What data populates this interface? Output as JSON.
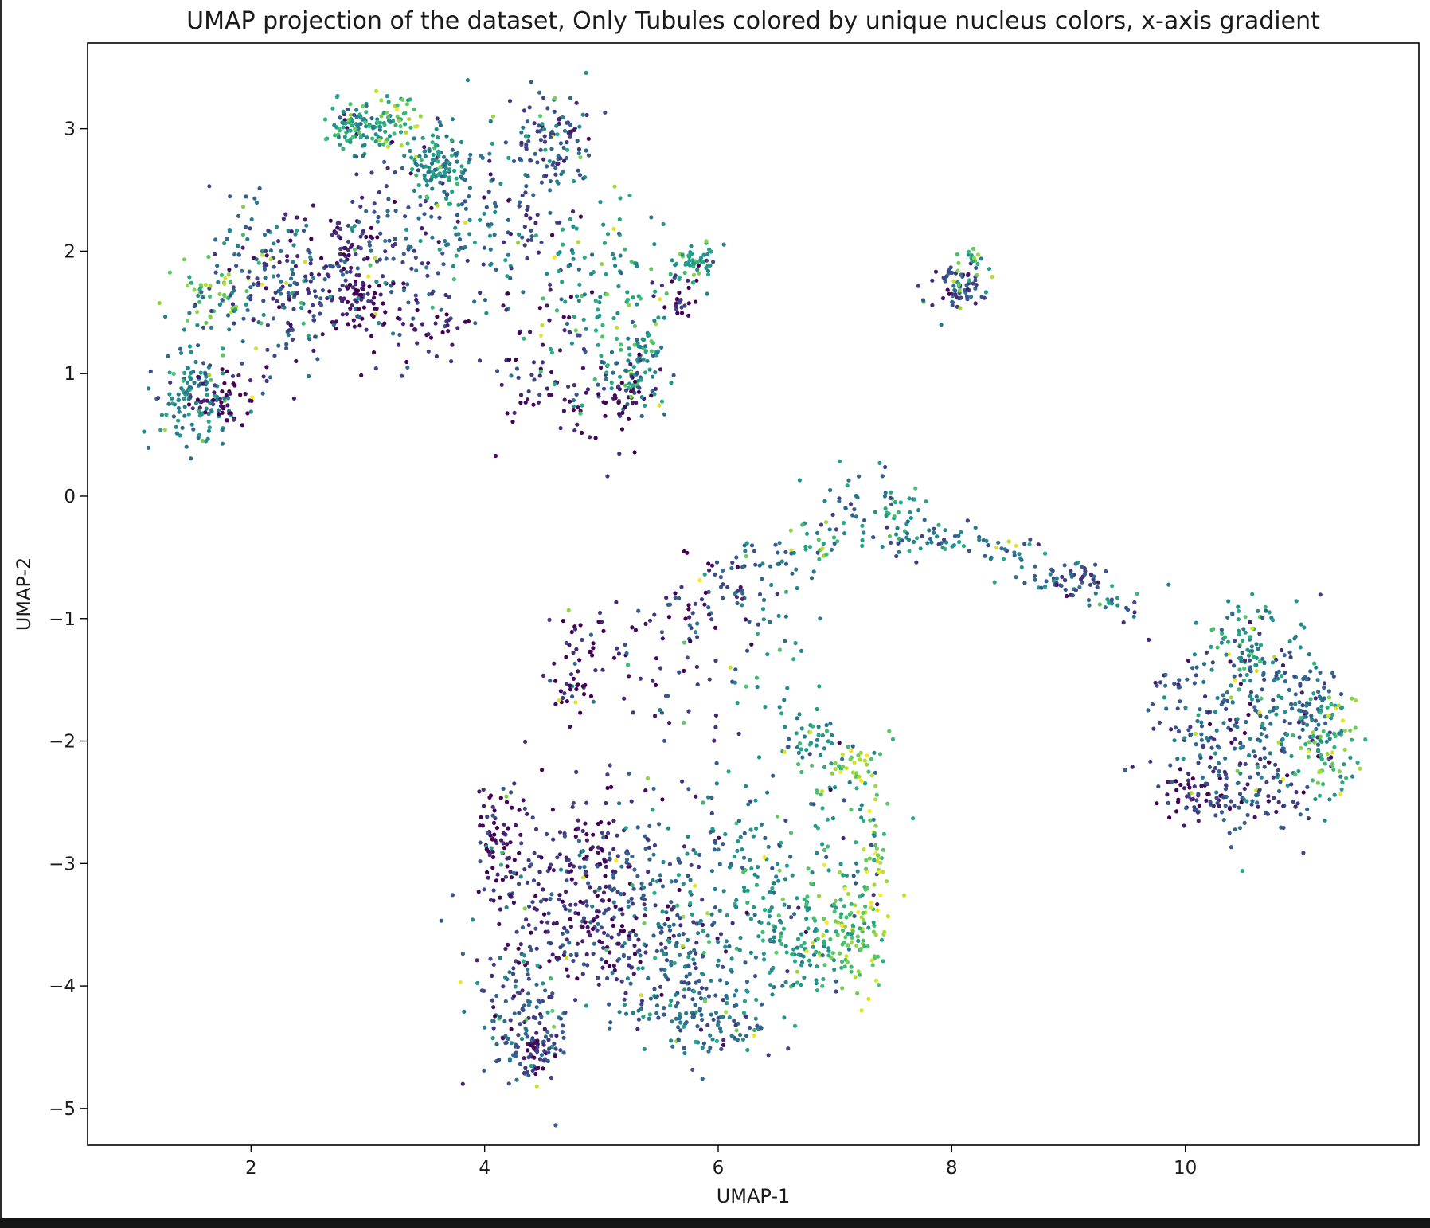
{
  "chart_data": {
    "type": "scatter",
    "title": "UMAP projection of the dataset, Only Tubules colored by unique nucleus colors, x-axis gradient",
    "xlabel": "UMAP-1",
    "ylabel": "UMAP-2",
    "xlim": [
      0.6,
      12.0
    ],
    "ylim": [
      -5.3,
      3.7
    ],
    "xticks": [
      2,
      4,
      6,
      8,
      10
    ],
    "yticks": [
      -5,
      -4,
      -3,
      -2,
      -1,
      0,
      1,
      2,
      3
    ],
    "xtick_labels": [
      "2",
      "4",
      "6",
      "8",
      "10"
    ],
    "ytick_labels": [
      "−5",
      "−4",
      "−3",
      "−2",
      "−1",
      "0",
      "1",
      "2",
      "3"
    ],
    "grid": false,
    "legend": "none",
    "colormap": "viridis",
    "marker_color_range": [
      "#440154",
      "#fde725"
    ],
    "clusters": [
      {
        "cx": 1.5,
        "cy": 0.85,
        "sx": 0.18,
        "sy": 0.22,
        "n": 130,
        "c": 0.45
      },
      {
        "cx": 1.75,
        "cy": 0.8,
        "sx": 0.1,
        "sy": 0.1,
        "n": 50,
        "c": 0.05
      },
      {
        "cx": 1.65,
        "cy": 1.65,
        "sx": 0.12,
        "sy": 0.12,
        "n": 40,
        "c": 0.7
      },
      {
        "cx": 2.1,
        "cy": 1.8,
        "sx": 0.25,
        "sy": 0.35,
        "n": 140,
        "c": 0.35
      },
      {
        "cx": 2.45,
        "cy": 1.6,
        "sx": 0.2,
        "sy": 0.3,
        "n": 80,
        "c": 0.15
      },
      {
        "cx": 2.95,
        "cy": 3.0,
        "sx": 0.15,
        "sy": 0.12,
        "n": 100,
        "c": 0.55
      },
      {
        "cx": 3.25,
        "cy": 3.1,
        "sx": 0.15,
        "sy": 0.1,
        "n": 40,
        "c": 0.75
      },
      {
        "cx": 2.9,
        "cy": 1.6,
        "sx": 0.12,
        "sy": 0.12,
        "n": 60,
        "c": 0.05
      },
      {
        "cx": 2.8,
        "cy": 2.0,
        "sx": 0.12,
        "sy": 0.2,
        "n": 60,
        "c": 0.1
      },
      {
        "cx": 3.2,
        "cy": 2.1,
        "sx": 0.3,
        "sy": 0.45,
        "n": 110,
        "c": 0.25
      },
      {
        "cx": 3.6,
        "cy": 2.7,
        "sx": 0.15,
        "sy": 0.15,
        "n": 110,
        "c": 0.5
      },
      {
        "cx": 3.85,
        "cy": 2.3,
        "sx": 0.3,
        "sy": 0.4,
        "n": 90,
        "c": 0.4
      },
      {
        "cx": 3.5,
        "cy": 1.4,
        "sx": 0.2,
        "sy": 0.15,
        "n": 40,
        "c": 0.1
      },
      {
        "cx": 4.6,
        "cy": 2.9,
        "sx": 0.15,
        "sy": 0.2,
        "n": 90,
        "c": 0.3
      },
      {
        "cx": 4.4,
        "cy": 2.4,
        "sx": 0.2,
        "sy": 0.5,
        "n": 70,
        "c": 0.2
      },
      {
        "cx": 4.95,
        "cy": 1.8,
        "sx": 0.3,
        "sy": 0.4,
        "n": 110,
        "c": 0.55
      },
      {
        "cx": 4.5,
        "cy": 1.0,
        "sx": 0.25,
        "sy": 0.3,
        "n": 60,
        "c": 0.1
      },
      {
        "cx": 4.95,
        "cy": 0.7,
        "sx": 0.25,
        "sy": 0.2,
        "n": 40,
        "c": 0.05
      },
      {
        "cx": 5.35,
        "cy": 1.1,
        "sx": 0.12,
        "sy": 0.2,
        "n": 80,
        "c": 0.5
      },
      {
        "cx": 5.25,
        "cy": 0.85,
        "sx": 0.1,
        "sy": 0.15,
        "n": 30,
        "c": 0.1
      },
      {
        "cx": 5.8,
        "cy": 1.9,
        "sx": 0.12,
        "sy": 0.08,
        "n": 50,
        "c": 0.55
      },
      {
        "cx": 5.65,
        "cy": 1.6,
        "sx": 0.1,
        "sy": 0.1,
        "n": 30,
        "c": 0.05
      },
      {
        "cx": 8.05,
        "cy": 1.7,
        "sx": 0.12,
        "sy": 0.1,
        "n": 70,
        "c": 0.2
      },
      {
        "cx": 8.15,
        "cy": 1.85,
        "sx": 0.08,
        "sy": 0.08,
        "n": 20,
        "c": 0.65
      },
      {
        "cx": 7.2,
        "cy": -0.1,
        "sx": 0.2,
        "sy": 0.2,
        "n": 40,
        "c": 0.4
      },
      {
        "cx": 7.55,
        "cy": -0.2,
        "sx": 0.15,
        "sy": 0.15,
        "n": 40,
        "c": 0.5
      },
      {
        "cx": 7.9,
        "cy": -0.35,
        "sx": 0.2,
        "sy": 0.06,
        "n": 30,
        "c": 0.4
      },
      {
        "cx": 8.5,
        "cy": -0.45,
        "sx": 0.2,
        "sy": 0.05,
        "n": 25,
        "c": 0.4
      },
      {
        "cx": 9.0,
        "cy": -0.68,
        "sx": 0.18,
        "sy": 0.08,
        "n": 60,
        "c": 0.3
      },
      {
        "cx": 9.4,
        "cy": -0.88,
        "sx": 0.12,
        "sy": 0.06,
        "n": 20,
        "c": 0.45
      },
      {
        "cx": 6.6,
        "cy": -0.5,
        "sx": 0.15,
        "sy": 0.1,
        "n": 25,
        "c": 0.35
      },
      {
        "cx": 6.9,
        "cy": -0.4,
        "sx": 0.1,
        "sy": 0.1,
        "n": 12,
        "c": 0.7
      },
      {
        "cx": 6.2,
        "cy": -0.75,
        "sx": 0.2,
        "sy": 0.25,
        "n": 40,
        "c": 0.3
      },
      {
        "cx": 5.8,
        "cy": -0.9,
        "sx": 0.2,
        "sy": 0.25,
        "n": 40,
        "c": 0.1
      },
      {
        "cx": 5.25,
        "cy": -1.25,
        "sx": 0.25,
        "sy": 0.2,
        "n": 40,
        "c": 0.08
      },
      {
        "cx": 4.75,
        "cy": -1.45,
        "sx": 0.1,
        "sy": 0.25,
        "n": 45,
        "c": 0.03
      },
      {
        "cx": 6.5,
        "cy": -1.5,
        "sx": 0.15,
        "sy": 0.4,
        "n": 30,
        "c": 0.5
      },
      {
        "cx": 5.75,
        "cy": -1.75,
        "sx": 0.3,
        "sy": 0.25,
        "n": 20,
        "c": 0.2
      },
      {
        "cx": 4.1,
        "cy": -2.8,
        "sx": 0.08,
        "sy": 0.2,
        "n": 60,
        "c": 0.02
      },
      {
        "cx": 4.35,
        "cy": -3.2,
        "sx": 0.25,
        "sy": 0.45,
        "n": 100,
        "c": 0.15
      },
      {
        "cx": 4.9,
        "cy": -2.95,
        "sx": 0.25,
        "sy": 0.3,
        "n": 110,
        "c": 0.1
      },
      {
        "cx": 5.5,
        "cy": -3.05,
        "sx": 0.3,
        "sy": 0.3,
        "n": 110,
        "c": 0.3
      },
      {
        "cx": 6.2,
        "cy": -2.85,
        "sx": 0.35,
        "sy": 0.35,
        "n": 80,
        "c": 0.4
      },
      {
        "cx": 4.3,
        "cy": -4.2,
        "sx": 0.2,
        "sy": 0.3,
        "n": 120,
        "c": 0.3
      },
      {
        "cx": 4.45,
        "cy": -4.55,
        "sx": 0.12,
        "sy": 0.1,
        "n": 60,
        "c": 0.15
      },
      {
        "cx": 5.0,
        "cy": -3.65,
        "sx": 0.25,
        "sy": 0.2,
        "n": 110,
        "c": 0.1
      },
      {
        "cx": 5.6,
        "cy": -3.85,
        "sx": 0.3,
        "sy": 0.3,
        "n": 140,
        "c": 0.3
      },
      {
        "cx": 5.9,
        "cy": -4.3,
        "sx": 0.3,
        "sy": 0.15,
        "n": 100,
        "c": 0.35
      },
      {
        "cx": 6.3,
        "cy": -3.55,
        "sx": 0.3,
        "sy": 0.35,
        "n": 100,
        "c": 0.5
      },
      {
        "cx": 6.85,
        "cy": -3.6,
        "sx": 0.2,
        "sy": 0.25,
        "n": 90,
        "c": 0.62
      },
      {
        "cx": 7.2,
        "cy": -3.55,
        "sx": 0.14,
        "sy": 0.25,
        "n": 90,
        "c": 0.78
      },
      {
        "cx": 7.1,
        "cy": -2.7,
        "sx": 0.22,
        "sy": 0.45,
        "n": 70,
        "c": 0.6
      },
      {
        "cx": 7.15,
        "cy": -2.2,
        "sx": 0.12,
        "sy": 0.1,
        "n": 30,
        "c": 0.85
      },
      {
        "cx": 6.8,
        "cy": -1.95,
        "sx": 0.12,
        "sy": 0.12,
        "n": 30,
        "c": 0.55
      },
      {
        "cx": 7.35,
        "cy": -2.9,
        "sx": 0.06,
        "sy": 0.2,
        "n": 25,
        "c": 0.9
      },
      {
        "cx": 10.1,
        "cy": -2.45,
        "sx": 0.18,
        "sy": 0.08,
        "n": 50,
        "c": 0.08
      },
      {
        "cx": 10.2,
        "cy": -1.95,
        "sx": 0.25,
        "sy": 0.35,
        "n": 110,
        "c": 0.25
      },
      {
        "cx": 10.5,
        "cy": -1.2,
        "sx": 0.15,
        "sy": 0.18,
        "n": 70,
        "c": 0.55
      },
      {
        "cx": 10.75,
        "cy": -1.75,
        "sx": 0.28,
        "sy": 0.4,
        "n": 150,
        "c": 0.4
      },
      {
        "cx": 11.1,
        "cy": -1.65,
        "sx": 0.14,
        "sy": 0.2,
        "n": 60,
        "c": 0.3
      },
      {
        "cx": 11.25,
        "cy": -2.05,
        "sx": 0.12,
        "sy": 0.2,
        "n": 70,
        "c": 0.7
      },
      {
        "cx": 10.7,
        "cy": -2.35,
        "sx": 0.25,
        "sy": 0.2,
        "n": 60,
        "c": 0.2
      },
      {
        "cx": 9.95,
        "cy": -1.55,
        "sx": 0.15,
        "sy": 0.2,
        "n": 25,
        "c": 0.3
      }
    ]
  }
}
